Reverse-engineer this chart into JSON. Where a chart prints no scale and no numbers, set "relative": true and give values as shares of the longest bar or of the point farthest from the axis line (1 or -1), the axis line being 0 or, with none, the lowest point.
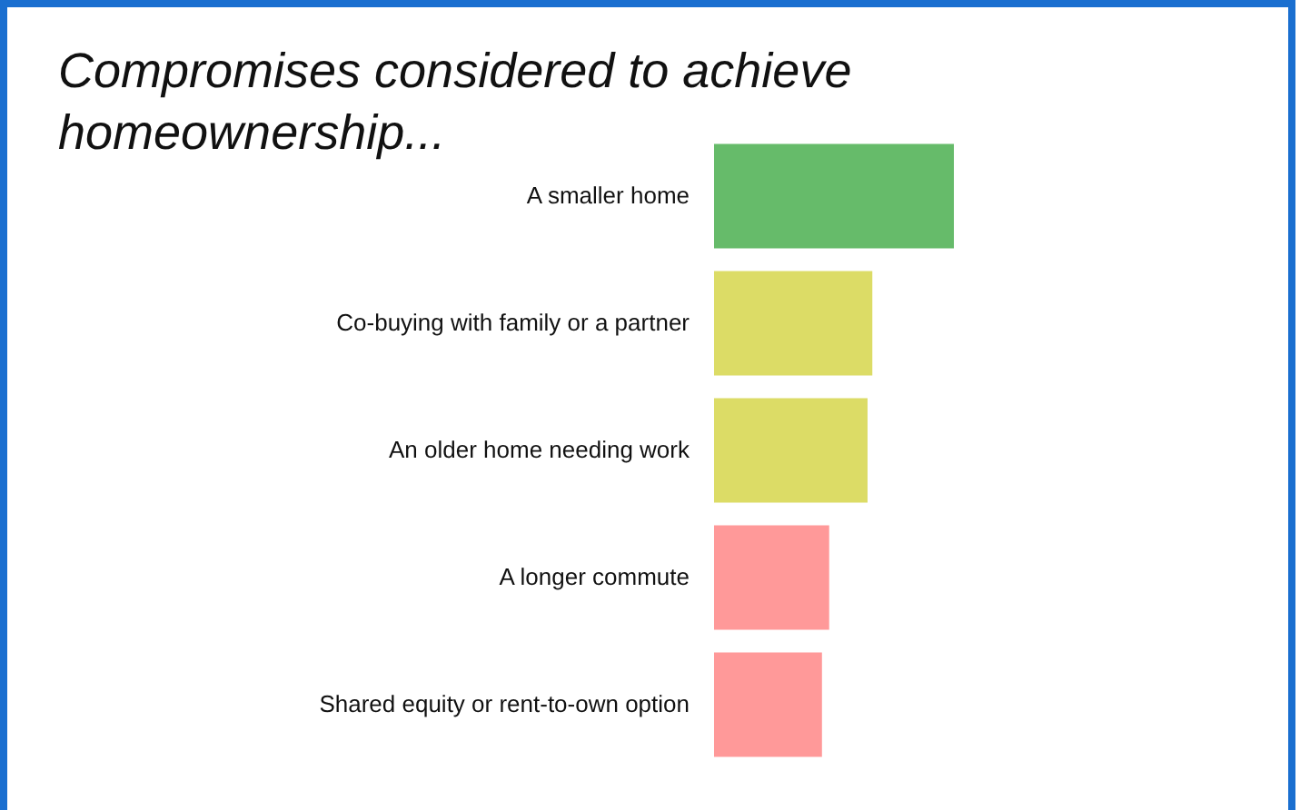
{
  "chart_data": {
    "type": "bar",
    "orientation": "horizontal",
    "relative": true,
    "title": "Compromises considered to achieve homeownership...",
    "categories": [
      "A smaller home",
      "Co-buying with family or a partner",
      "An older home needing work",
      "A longer commute",
      "Shared equity or rent-to-own option"
    ],
    "values": [
      1,
      0.66,
      0.64,
      0.48,
      0.45
    ],
    "colors": [
      "#66bb6a",
      "#dcdc66",
      "#dcdc66",
      "#ff9999",
      "#ff9999"
    ],
    "legend": false
  }
}
